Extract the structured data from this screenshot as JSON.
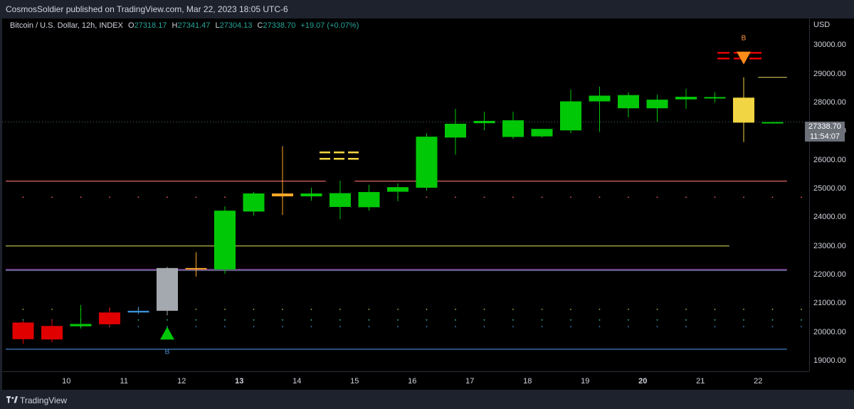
{
  "header": {
    "published": "CosmosSoldier published on TradingView.com, Mar 22, 2023 18:05 UTC-6"
  },
  "legend": {
    "symbol": "Bitcoin / U.S. Dollar, 12h, INDEX",
    "o_label": "O",
    "o_value": "27318.17",
    "h_label": "H",
    "h_value": "27341.47",
    "l_label": "L",
    "l_value": "27304.13",
    "c_label": "C",
    "c_value": "27338.70",
    "change": "+19.07 (+0.07%)"
  },
  "price_scale": {
    "currency": "USD",
    "last_price": "27338.70",
    "countdown": "11:54:07"
  },
  "footer": {
    "brand": "TradingView"
  },
  "colors": {
    "up": "#00c806",
    "down": "#e00000",
    "neutral": "#a4a9b0",
    "highlight": "#f2d542",
    "orange": "#ffa726"
  },
  "chart_data": {
    "type": "candlestick",
    "ylim": [
      18650,
      30950
    ],
    "y_ticks": [
      19000,
      20000,
      21000,
      22000,
      23000,
      24000,
      25000,
      26000,
      27000,
      28000,
      29000,
      30000
    ],
    "x_ticks": [
      {
        "label": "10",
        "index": 1.5,
        "bold": false
      },
      {
        "label": "11",
        "index": 3.5,
        "bold": false
      },
      {
        "label": "12",
        "index": 5.5,
        "bold": false
      },
      {
        "label": "13",
        "index": 7.5,
        "bold": true
      },
      {
        "label": "14",
        "index": 9.5,
        "bold": false
      },
      {
        "label": "15",
        "index": 11.5,
        "bold": false
      },
      {
        "label": "16",
        "index": 13.5,
        "bold": false
      },
      {
        "label": "17",
        "index": 15.5,
        "bold": false
      },
      {
        "label": "18",
        "index": 17.5,
        "bold": false
      },
      {
        "label": "19",
        "index": 19.5,
        "bold": false
      },
      {
        "label": "20",
        "index": 21.5,
        "bold": true
      },
      {
        "label": "21",
        "index": 23.5,
        "bold": false
      },
      {
        "label": "22",
        "index": 25.5,
        "bold": false
      }
    ],
    "candles": [
      {
        "o": 20350,
        "h": 20400,
        "l": 19600,
        "c": 19770,
        "color": "down"
      },
      {
        "o": 20230,
        "h": 20460,
        "l": 19660,
        "c": 19760,
        "color": "down"
      },
      {
        "o": 20220,
        "h": 20960,
        "l": 20140,
        "c": 20300,
        "color": "up_hl"
      },
      {
        "o": 20700,
        "h": 20880,
        "l": 20200,
        "c": 20290,
        "color": "down"
      },
      {
        "o": 20700,
        "h": 20900,
        "l": 20640,
        "c": 20760,
        "color": "blue"
      },
      {
        "o": 20760,
        "h": 22290,
        "l": 20600,
        "c": 22250,
        "color": "neutral"
      },
      {
        "o": 22200,
        "h": 22800,
        "l": 21950,
        "c": 22250,
        "color": "orange"
      },
      {
        "o": 22200,
        "h": 24400,
        "l": 22050,
        "c": 24250,
        "color": "up"
      },
      {
        "o": 24220,
        "h": 24900,
        "l": 24080,
        "c": 24850,
        "color": "up"
      },
      {
        "o": 24850,
        "h": 26500,
        "l": 24100,
        "c": 24750,
        "color": "orange"
      },
      {
        "o": 24750,
        "h": 25050,
        "l": 24600,
        "c": 24850,
        "color": "up"
      },
      {
        "o": 24380,
        "h": 25300,
        "l": 23950,
        "c": 24860,
        "color": "up"
      },
      {
        "o": 24370,
        "h": 25150,
        "l": 24250,
        "c": 24900,
        "color": "up"
      },
      {
        "o": 24910,
        "h": 25200,
        "l": 24580,
        "c": 25070,
        "color": "up"
      },
      {
        "o": 25050,
        "h": 26950,
        "l": 24950,
        "c": 26830,
        "color": "up"
      },
      {
        "o": 26800,
        "h": 27800,
        "l": 26200,
        "c": 27280,
        "color": "up"
      },
      {
        "o": 27300,
        "h": 27700,
        "l": 27050,
        "c": 27380,
        "color": "up"
      },
      {
        "o": 27400,
        "h": 27700,
        "l": 26750,
        "c": 26820,
        "color": "up"
      },
      {
        "o": 26840,
        "h": 27100,
        "l": 26800,
        "c": 27100,
        "color": "up"
      },
      {
        "o": 27050,
        "h": 28470,
        "l": 26950,
        "c": 28060,
        "color": "up"
      },
      {
        "o": 28060,
        "h": 28570,
        "l": 27000,
        "c": 28260,
        "color": "up"
      },
      {
        "o": 28280,
        "h": 28380,
        "l": 27500,
        "c": 27820,
        "color": "up"
      },
      {
        "o": 27820,
        "h": 28290,
        "l": 27350,
        "c": 28120,
        "color": "up"
      },
      {
        "o": 28130,
        "h": 28500,
        "l": 27800,
        "c": 28220,
        "color": "up"
      },
      {
        "o": 28190,
        "h": 28380,
        "l": 28020,
        "c": 28210,
        "color": "up"
      },
      {
        "o": 28190,
        "h": 28900,
        "l": 26640,
        "c": 27320,
        "color": "highlight"
      },
      {
        "o": 27318.17,
        "h": 27341.47,
        "l": 27304.13,
        "c": 27338.7,
        "color": "up"
      }
    ],
    "levels": [
      {
        "y": 25280,
        "from": 0,
        "to": 10.5,
        "color": "#e06464"
      },
      {
        "y": 25280,
        "from": 11.5,
        "to": 26.5,
        "color": "#e06464"
      },
      {
        "y": 23020,
        "from": 0,
        "to": 24.5,
        "color": "#b5b84a"
      },
      {
        "y": 22200,
        "from": 0,
        "to": 26.5,
        "color": "#a65acb"
      },
      {
        "y": 22160,
        "from": 0,
        "to": 26.5,
        "color": "#5e6a86"
      },
      {
        "y": 19420,
        "from": 0,
        "to": 26.5,
        "color": "#4a90d9"
      },
      {
        "y": 28900,
        "from": 25.5,
        "to": 26.5,
        "color": "#cfc25a"
      }
    ],
    "signals": [
      {
        "type": "buy",
        "index": 5,
        "y": 19980,
        "label": "B"
      },
      {
        "type": "sell",
        "index": 25,
        "y": 29570,
        "label": "B"
      }
    ]
  }
}
